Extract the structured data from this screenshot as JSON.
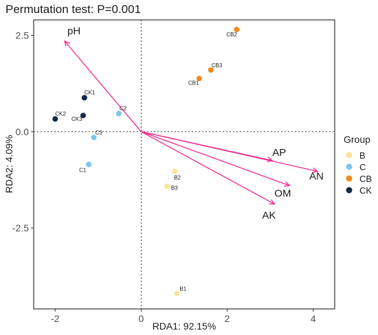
{
  "chart_data": {
    "type": "scatter",
    "title": "Permutation test: P=0.001",
    "xlabel": "RDA1: 92.15%",
    "ylabel": "RDA2: 4.09%",
    "xlim": [
      -2.5,
      4.5
    ],
    "ylim": [
      -4.6,
      2.9
    ],
    "x_ticks": [
      -2,
      0,
      2,
      4
    ],
    "x_tick_labels": [
      "-2",
      "0",
      "2",
      "4"
    ],
    "y_ticks": [
      2.5,
      0,
      -2.5
    ],
    "y_tick_labels": [
      "2.5",
      "0.0",
      "-2.5"
    ],
    "grid": false,
    "reference_lines": {
      "x": 0,
      "y": 0,
      "style": "dotted"
    },
    "legend": {
      "title": "Group",
      "position": "right",
      "entries": [
        {
          "name": "B",
          "color": "#FCE39B"
        },
        {
          "name": "C",
          "color": "#7CC7EB"
        },
        {
          "name": "CB",
          "color": "#F2891E"
        },
        {
          "name": "CK",
          "color": "#0E2A47"
        }
      ]
    },
    "series": [
      {
        "name": "B",
        "color": "#FCE39B",
        "points": [
          {
            "label": "B1",
            "x": 0.83,
            "y": -4.2
          },
          {
            "label": "B2",
            "x": 0.78,
            "y": -1.03
          },
          {
            "label": "B3",
            "x": 0.6,
            "y": -1.42
          }
        ]
      },
      {
        "name": "C",
        "color": "#7CC7EB",
        "points": [
          {
            "label": "C1",
            "x": -1.22,
            "y": -0.85
          },
          {
            "label": "C2",
            "x": -0.52,
            "y": 0.47
          },
          {
            "label": "C3",
            "x": -1.1,
            "y": -0.15
          }
        ]
      },
      {
        "name": "CB",
        "color": "#F2891E",
        "points": [
          {
            "label": "CB1",
            "x": 1.35,
            "y": 1.38
          },
          {
            "label": "CB2",
            "x": 2.22,
            "y": 2.65
          },
          {
            "label": "CB3",
            "x": 1.62,
            "y": 1.6
          }
        ]
      },
      {
        "name": "CK",
        "color": "#0E2A47",
        "points": [
          {
            "label": "CK1",
            "x": -1.32,
            "y": 0.88
          },
          {
            "label": "CK2",
            "x": -2.0,
            "y": 0.33
          },
          {
            "label": "CK3",
            "x": -1.35,
            "y": 0.42
          }
        ]
      }
    ],
    "vectors": [
      {
        "label": "pH",
        "x": -1.78,
        "y": 2.35
      },
      {
        "label": "AP",
        "x": 3.05,
        "y": -0.75
      },
      {
        "label": "AN",
        "x": 4.1,
        "y": -1.03
      },
      {
        "label": "OM",
        "x": 3.45,
        "y": -1.4
      },
      {
        "label": "AK",
        "x": 3.1,
        "y": -1.88
      }
    ],
    "vector_color": "#F0278C"
  }
}
